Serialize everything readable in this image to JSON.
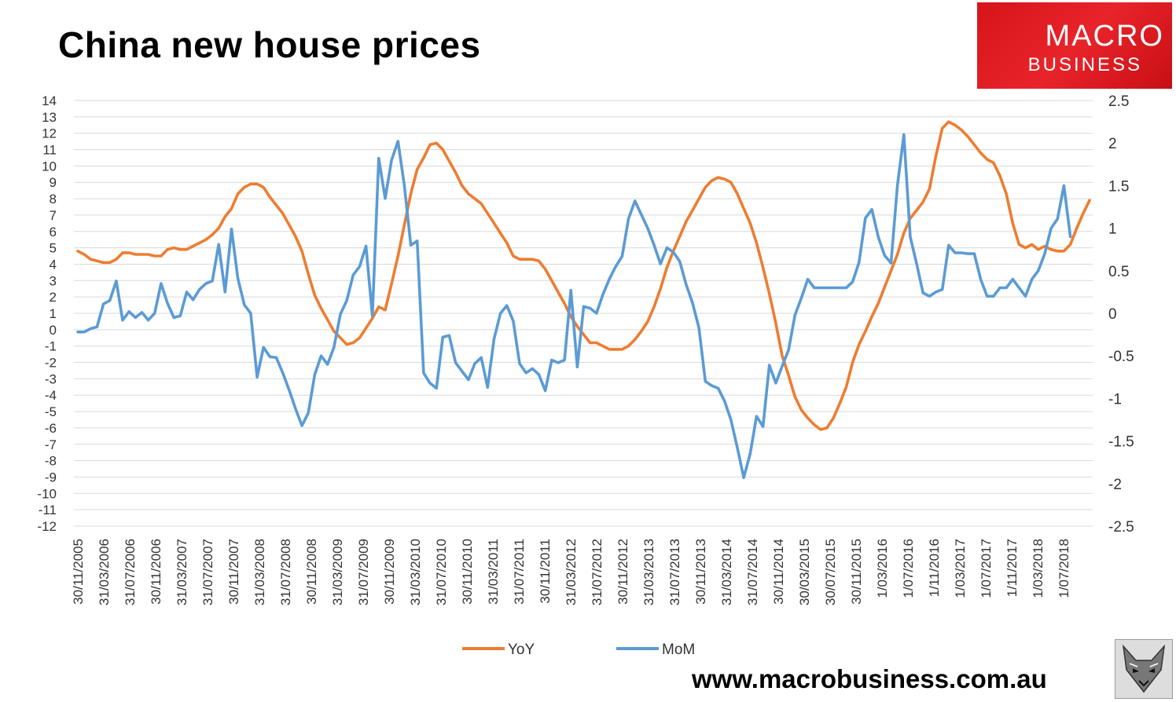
{
  "title": "China new house prices",
  "logo": {
    "line1": "MACRO",
    "line2": "BUSINESS"
  },
  "footer_url": "www.macrobusiness.com.au",
  "chart_data": {
    "type": "line",
    "title": "China new house prices",
    "grid": true,
    "legend_position": "bottom",
    "y_left": {
      "min": -12,
      "max": 14,
      "ticks": [
        14,
        13,
        12,
        11,
        10,
        9,
        8,
        7,
        6,
        5,
        4,
        3,
        2,
        1,
        0,
        -1,
        -2,
        -3,
        -4,
        -5,
        -6,
        -7,
        -8,
        -9,
        -10,
        -11,
        -12
      ]
    },
    "y_right": {
      "min": -2.5,
      "max": 2.5,
      "ticks": [
        "2.5",
        "2",
        "1.5",
        "1",
        "0.5",
        "0",
        "-0.5",
        "-1",
        "-1.5",
        "-2",
        "-2.5"
      ]
    },
    "x_tick_labels": [
      "30/11/2005",
      "31/03/2006",
      "31/07/2006",
      "30/11/2006",
      "31/03/2007",
      "31/07/2007",
      "30/11/2007",
      "31/03/2008",
      "31/07/2008",
      "30/11/2008",
      "31/03/2009",
      "31/07/2009",
      "30/11/2009",
      "31/03/2010",
      "31/07/2010",
      "30/11/2010",
      "31/03/2011",
      "31/07/2011",
      "30/11/2011",
      "31/03/2012",
      "31/07/2012",
      "30/11/2012",
      "31/03/2013",
      "31/07/2013",
      "30/11/2013",
      "31/03/2014",
      "31/07/2014",
      "30/11/2014",
      "30/03/2015",
      "30/07/2015",
      "30/11/2015",
      "1/03/2016",
      "1/07/2016",
      "1/11/2016",
      "1/03/2017",
      "1/07/2017",
      "1/11/2017",
      "1/03/2018",
      "1/07/2018"
    ],
    "series": [
      {
        "name": "YoY",
        "axis": "left",
        "color": "#ED7D31",
        "values": [
          4.8,
          4.6,
          4.3,
          4.2,
          4.1,
          4.1,
          4.3,
          4.7,
          4.7,
          4.6,
          4.6,
          4.6,
          4.5,
          4.5,
          4.9,
          5.0,
          4.9,
          4.9,
          5.1,
          5.3,
          5.5,
          5.8,
          6.2,
          6.9,
          7.4,
          8.3,
          8.7,
          8.9,
          8.9,
          8.7,
          8.1,
          7.6,
          7.1,
          6.4,
          5.7,
          4.8,
          3.4,
          2.1,
          1.3,
          0.6,
          -0.1,
          -0.5,
          -0.9,
          -0.8,
          -0.5,
          0.1,
          0.7,
          1.4,
          1.2,
          2.8,
          4.5,
          6.4,
          8.3,
          9.8,
          10.5,
          11.3,
          11.4,
          11.0,
          10.3,
          9.6,
          8.8,
          8.3,
          8.0,
          7.7,
          7.1,
          6.5,
          5.9,
          5.3,
          4.5,
          4.3,
          4.3,
          4.3,
          4.2,
          3.7,
          3.0,
          2.3,
          1.6,
          0.8,
          0.2,
          -0.3,
          -0.8,
          -0.8,
          -1.0,
          -1.2,
          -1.2,
          -1.2,
          -1.0,
          -0.6,
          -0.1,
          0.5,
          1.4,
          2.5,
          3.8,
          4.8,
          5.7,
          6.6,
          7.3,
          8.0,
          8.7,
          9.1,
          9.3,
          9.2,
          9.0,
          8.3,
          7.4,
          6.5,
          5.3,
          3.8,
          2.2,
          0.4,
          -1.6,
          -2.8,
          -4.1,
          -4.9,
          -5.4,
          -5.8,
          -6.1,
          -6.0,
          -5.4,
          -4.5,
          -3.5,
          -2.0,
          -0.9,
          -0.1,
          0.8,
          1.6,
          2.6,
          3.6,
          4.6,
          5.9,
          6.8,
          7.3,
          7.8,
          8.6,
          10.6,
          12.3,
          12.7,
          12.5,
          12.2,
          11.8,
          11.3,
          10.8,
          10.4,
          10.2,
          9.4,
          8.3,
          6.5,
          5.2,
          5.0,
          5.2,
          4.9,
          5.1,
          4.9,
          4.8,
          4.8,
          5.2,
          6.2,
          7.1,
          7.9
        ]
      },
      {
        "name": "MoM",
        "axis": "right",
        "color": "#5B9BD5",
        "values": [
          -0.22,
          -0.22,
          -0.18,
          -0.16,
          0.11,
          0.15,
          0.38,
          -0.08,
          0.02,
          -0.05,
          0.01,
          -0.08,
          0.0,
          0.35,
          0.12,
          -0.05,
          -0.03,
          0.25,
          0.16,
          0.28,
          0.35,
          0.38,
          0.81,
          0.25,
          0.99,
          0.41,
          0.1,
          0.0,
          -0.75,
          -0.4,
          -0.51,
          -0.52,
          -0.7,
          -0.9,
          -1.12,
          -1.32,
          -1.17,
          -0.72,
          -0.5,
          -0.6,
          -0.4,
          -0.01,
          0.15,
          0.45,
          0.55,
          0.79,
          -0.03,
          1.82,
          1.35,
          1.8,
          2.02,
          1.5,
          0.8,
          0.85,
          -0.7,
          -0.82,
          -0.88,
          -0.28,
          -0.26,
          -0.58,
          -0.68,
          -0.78,
          -0.59,
          -0.52,
          -0.87,
          -0.3,
          0.0,
          0.09,
          -0.09,
          -0.59,
          -0.7,
          -0.65,
          -0.72,
          -0.91,
          -0.55,
          -0.58,
          -0.55,
          0.27,
          -0.63,
          0.08,
          0.06,
          0.0,
          0.22,
          0.4,
          0.55,
          0.67,
          1.11,
          1.32,
          1.16,
          1.0,
          0.8,
          0.58,
          0.77,
          0.72,
          0.61,
          0.34,
          0.12,
          -0.17,
          -0.8,
          -0.85,
          -0.88,
          -1.03,
          -1.25,
          -1.58,
          -1.93,
          -1.65,
          -1.21,
          -1.33,
          -0.61,
          -0.82,
          -0.62,
          -0.43,
          -0.02,
          0.18,
          0.4,
          0.3,
          0.3,
          0.3,
          0.3,
          0.3,
          0.3,
          0.37,
          0.6,
          1.12,
          1.22,
          0.9,
          0.68,
          0.59,
          1.5,
          2.1,
          0.9,
          0.58,
          0.24,
          0.2,
          0.25,
          0.28,
          0.8,
          0.71,
          0.71,
          0.7,
          0.7,
          0.4,
          0.2,
          0.2,
          0.3,
          0.3,
          0.4,
          0.3,
          0.2,
          0.4,
          0.5,
          0.7,
          1.0,
          1.11,
          1.5,
          0.9
        ]
      }
    ]
  }
}
